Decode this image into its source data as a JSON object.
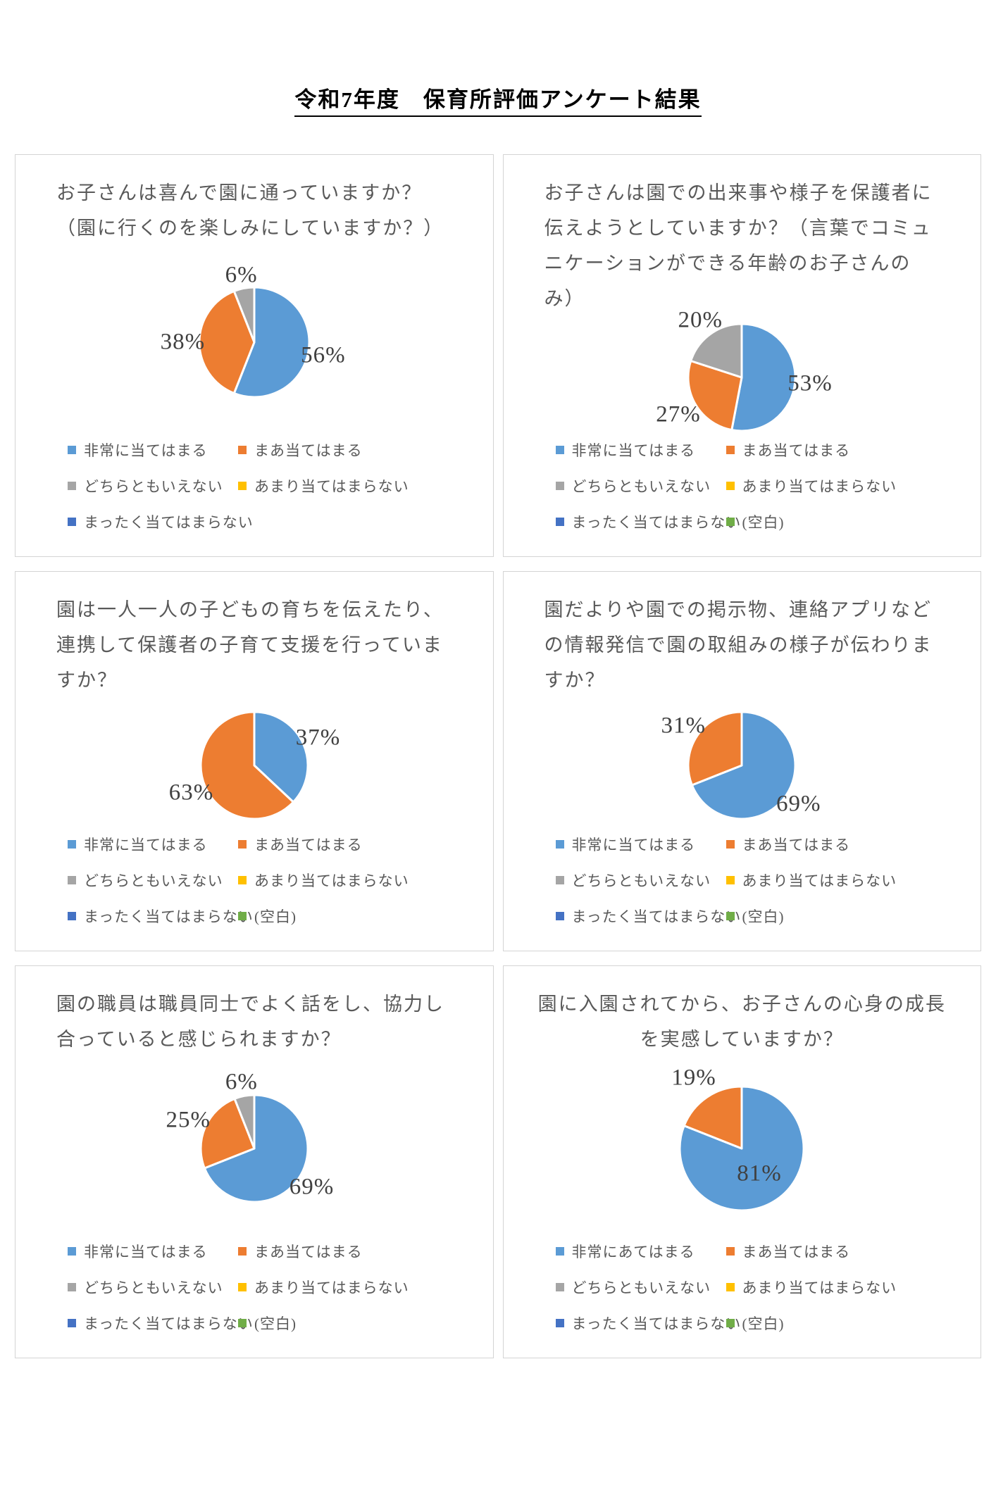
{
  "page_title": "令和7年度　保育所評価アンケート結果",
  "colors": {
    "blue": "#5B9BD5",
    "orange": "#ED7D31",
    "gray": "#A5A5A5",
    "yellow": "#FFC000",
    "dark_blue": "#4472C4",
    "green": "#70AD47"
  },
  "chart_data": [
    {
      "type": "pie",
      "title": "お子さんは喜んで園に通っていますか？（園に行くのを楽しみにしていますか？）",
      "start_angle_deg": 0,
      "direction": "clockwise",
      "radius_px": 78,
      "slices": [
        {
          "label": "非常に当てはまる",
          "value": 56,
          "color": "blue",
          "label_radius_factor": 1.28
        },
        {
          "label": "まあ当てはまる",
          "value": 38,
          "color": "orange",
          "label_radius_factor": 1.3
        },
        {
          "label": "どちらともいえない",
          "value": 6,
          "color": "gray",
          "label_radius_factor": 1.24
        }
      ],
      "legend": [
        {
          "label": "非常に当てはまる",
          "color": "blue"
        },
        {
          "label": "まあ当てはまる",
          "color": "orange"
        },
        {
          "label": "どちらともいえない",
          "color": "gray"
        },
        {
          "label": "あまり当てはまらない",
          "color": "yellow"
        },
        {
          "label": "まったく当てはまらない",
          "color": "dark_blue"
        }
      ]
    },
    {
      "type": "pie",
      "title": "お子さんは園での出来事や様子を保護者に伝えようとしていますか？（言葉でコミュニケーションができる年齢のお子さんのみ）",
      "start_angle_deg": 0,
      "direction": "clockwise",
      "radius_px": 76,
      "slices": [
        {
          "label": "非常に当てはまる",
          "value": 53,
          "color": "blue",
          "label_radius_factor": 1.28
        },
        {
          "label": "まあ当てはまる",
          "value": 27,
          "color": "orange",
          "label_radius_factor": 1.38
        },
        {
          "label": "どちらともいえない",
          "value": 20,
          "color": "gray",
          "label_radius_factor": 1.32
        }
      ],
      "legend": [
        {
          "label": "非常に当てはまる",
          "color": "blue"
        },
        {
          "label": "まあ当てはまる",
          "color": "orange"
        },
        {
          "label": "どちらともいえない",
          "color": "gray"
        },
        {
          "label": "あまり当てはまらない",
          "color": "yellow"
        },
        {
          "label": "まったく当てはまらない",
          "color": "dark_blue"
        },
        {
          "label": "(空白)",
          "color": "green"
        }
      ]
    },
    {
      "type": "pie",
      "title": "園は一人一人の子どもの育ちを伝えたり、連携して保護者の子育て支援を行っていますか？",
      "start_angle_deg": 0,
      "direction": "clockwise",
      "radius_px": 76,
      "slices": [
        {
          "label": "非常に当てはまる",
          "value": 37,
          "color": "blue",
          "label_radius_factor": 1.3
        },
        {
          "label": "まあ当てはまる",
          "value": 63,
          "color": "orange",
          "label_radius_factor": 1.28
        }
      ],
      "legend": [
        {
          "label": "非常に当てはまる",
          "color": "blue"
        },
        {
          "label": "まあ当てはまる",
          "color": "orange"
        },
        {
          "label": "どちらともいえない",
          "color": "gray"
        },
        {
          "label": "あまり当てはまらない",
          "color": "yellow"
        },
        {
          "label": "まったく当てはまらない",
          "color": "dark_blue"
        },
        {
          "label": "(空白)",
          "color": "green"
        }
      ]
    },
    {
      "type": "pie",
      "title": "園だよりや園での掲示物、連絡アプリなどの情報発信で園の取組みの様子が伝わりますか？",
      "start_angle_deg": 0,
      "direction": "clockwise",
      "radius_px": 76,
      "slices": [
        {
          "label": "非常に当てはまる",
          "value": 69,
          "color": "blue",
          "label_radius_factor": 1.28
        },
        {
          "label": "まあ当てはまる",
          "value": 31,
          "color": "orange",
          "label_radius_factor": 1.32
        }
      ],
      "legend": [
        {
          "label": "非常に当てはまる",
          "color": "blue"
        },
        {
          "label": "まあ当てはまる",
          "color": "orange"
        },
        {
          "label": "どちらともいえない",
          "color": "gray"
        },
        {
          "label": "あまり当てはまらない",
          "color": "yellow"
        },
        {
          "label": "まったく当てはまらない",
          "color": "dark_blue"
        },
        {
          "label": "(空白)",
          "color": "green"
        }
      ]
    },
    {
      "type": "pie",
      "title": "園の職員は職員同士でよく話をし、協力し合っていると感じられますか？",
      "start_angle_deg": 0,
      "direction": "clockwise",
      "radius_px": 76,
      "slices": [
        {
          "label": "非常に当てはまる",
          "value": 69,
          "color": "blue",
          "label_radius_factor": 1.3
        },
        {
          "label": "まあ当てはまる",
          "value": 25,
          "color": "orange",
          "label_radius_factor": 1.34
        },
        {
          "label": "どちらともいえない",
          "value": 6,
          "color": "gray",
          "label_radius_factor": 1.26
        }
      ],
      "legend": [
        {
          "label": "非常に当てはまる",
          "color": "blue"
        },
        {
          "label": "まあ当てはまる",
          "color": "orange"
        },
        {
          "label": "どちらともいえない",
          "color": "gray"
        },
        {
          "label": "あまり当てはまらない",
          "color": "yellow"
        },
        {
          "label": "まったく当てはまらない",
          "color": "dark_blue"
        },
        {
          "label": "(空白)",
          "color": "green"
        }
      ]
    },
    {
      "type": "pie",
      "title": "園に入園されてから、お子さんの心身の成長を実感していますか？",
      "start_angle_deg": 0,
      "direction": "clockwise",
      "radius_px": 88,
      "slices": [
        {
          "label": "非常にあてはまる",
          "value": 81,
          "color": "blue",
          "label_radius_factor": 0.5
        },
        {
          "label": "まあ当てはまる",
          "value": 19,
          "color": "orange",
          "label_radius_factor": 1.38
        }
      ],
      "legend": [
        {
          "label": "非常にあてはまる",
          "color": "blue"
        },
        {
          "label": "まあ当てはまる",
          "color": "orange"
        },
        {
          "label": "どちらともいえない",
          "color": "gray"
        },
        {
          "label": "あまり当てはまらない",
          "color": "yellow"
        },
        {
          "label": "まったく当てはまらない",
          "color": "dark_blue"
        },
        {
          "label": "(空白)",
          "color": "green"
        }
      ]
    }
  ]
}
